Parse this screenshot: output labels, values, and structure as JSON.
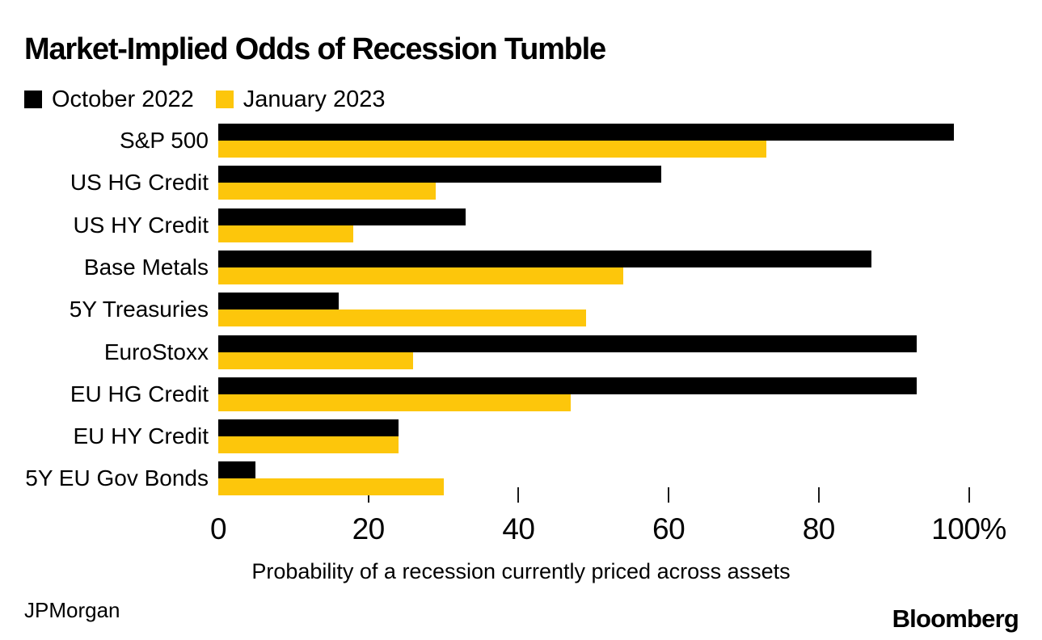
{
  "title": "Market-Implied Odds of Recession Tumble",
  "legend": [
    {
      "label": "October 2022",
      "color": "#000000"
    },
    {
      "label": "January 2023",
      "color": "#FDC60B"
    }
  ],
  "chart_data": {
    "type": "bar",
    "orientation": "horizontal",
    "title": "Market-Implied Odds of Recession Tumble",
    "categories": [
      "S&P 500",
      "US HG Credit",
      "US HY Credit",
      "Base Metals",
      "5Y Treasuries",
      "EuroStoxx",
      "EU HG Credit",
      "EU HY Credit",
      "5Y EU Gov Bonds"
    ],
    "series": [
      {
        "name": "October 2022",
        "color": "#000000",
        "values": [
          98,
          59,
          33,
          87,
          16,
          93,
          93,
          24,
          5
        ]
      },
      {
        "name": "January 2023",
        "color": "#FDC60B",
        "values": [
          73,
          29,
          18,
          54,
          49,
          26,
          47,
          24,
          30
        ]
      }
    ],
    "xlabel": "Probability of a recession currently priced across assets",
    "xlim": [
      0,
      100
    ],
    "x_ticks": [
      {
        "value": 0,
        "label": "0"
      },
      {
        "value": 20,
        "label": "20"
      },
      {
        "value": 40,
        "label": "40"
      },
      {
        "value": 60,
        "label": "60"
      },
      {
        "value": 80,
        "label": "80"
      },
      {
        "value": 100,
        "label": "100%"
      }
    ],
    "grid": false,
    "legend_position": "top-left"
  },
  "source": "JPMorgan",
  "branding": "Bloomberg"
}
